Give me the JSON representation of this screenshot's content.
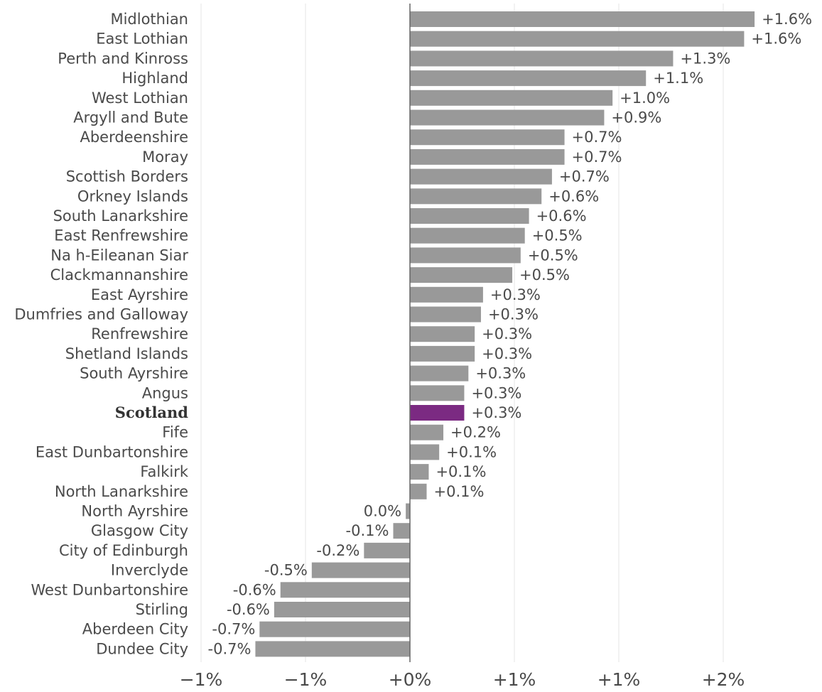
{
  "chart_data": {
    "type": "bar",
    "orientation": "horizontal",
    "categories": [
      "Midlothian",
      "East Lothian",
      "Perth and Kinross",
      "Highland",
      "West Lothian",
      "Argyll and Bute",
      "Aberdeenshire",
      "Moray",
      "Scottish Borders",
      "Orkney Islands",
      "South Lanarkshire",
      "East Renfrewshire",
      "Na h-Eileanan Siar",
      "Clackmannanshire",
      "East Ayrshire",
      "Dumfries and Galloway",
      "Renfrewshire",
      "Shetland Islands",
      "South Ayrshire",
      "Angus",
      "Scotland",
      "Fife",
      "East Dunbartonshire",
      "Falkirk",
      "North Lanarkshire",
      "North Ayrshire",
      "Glasgow City",
      "City of Edinburgh",
      "Inverclyde",
      "West Dunbartonshire",
      "Stirling",
      "Aberdeen City",
      "Dundee City"
    ],
    "values": [
      1.65,
      1.6,
      1.26,
      1.13,
      0.97,
      0.93,
      0.74,
      0.74,
      0.68,
      0.63,
      0.57,
      0.55,
      0.53,
      0.49,
      0.35,
      0.34,
      0.31,
      0.31,
      0.28,
      0.26,
      0.26,
      0.16,
      0.14,
      0.09,
      0.08,
      -0.02,
      -0.08,
      -0.22,
      -0.47,
      -0.62,
      -0.65,
      -0.72,
      -0.74
    ],
    "value_labels": [
      "+1.6%",
      "+1.6%",
      "+1.3%",
      "+1.1%",
      "+1.0%",
      "+0.9%",
      "+0.7%",
      "+0.7%",
      "+0.7%",
      "+0.6%",
      "+0.6%",
      "+0.5%",
      "+0.5%",
      "+0.5%",
      "+0.3%",
      "+0.3%",
      "+0.3%",
      "+0.3%",
      "+0.3%",
      "+0.3%",
      "+0.3%",
      "+0.2%",
      "+0.1%",
      "+0.1%",
      "+0.1%",
      "0.0%",
      "-0.1%",
      "-0.2%",
      "-0.5%",
      "-0.6%",
      "-0.6%",
      "-0.7%",
      "-0.7%"
    ],
    "highlight": "Scotland",
    "xlim": [
      -1.0,
      1.5
    ],
    "xticks": [
      -1.0,
      -0.5,
      0.0,
      0.5,
      1.0,
      1.5
    ],
    "xtick_labels": [
      "−1%",
      "−1%",
      "+0%",
      "+1%",
      "+1%",
      "+2%"
    ],
    "title": "",
    "xlabel": "",
    "ylabel": "",
    "grid": "vertical",
    "legend": "none",
    "colors": {
      "bar": "#999999",
      "highlight": "#7b2a82",
      "zero_line": "#666666",
      "grid": "#e6e6e6",
      "text": "#4a4a4a"
    }
  }
}
